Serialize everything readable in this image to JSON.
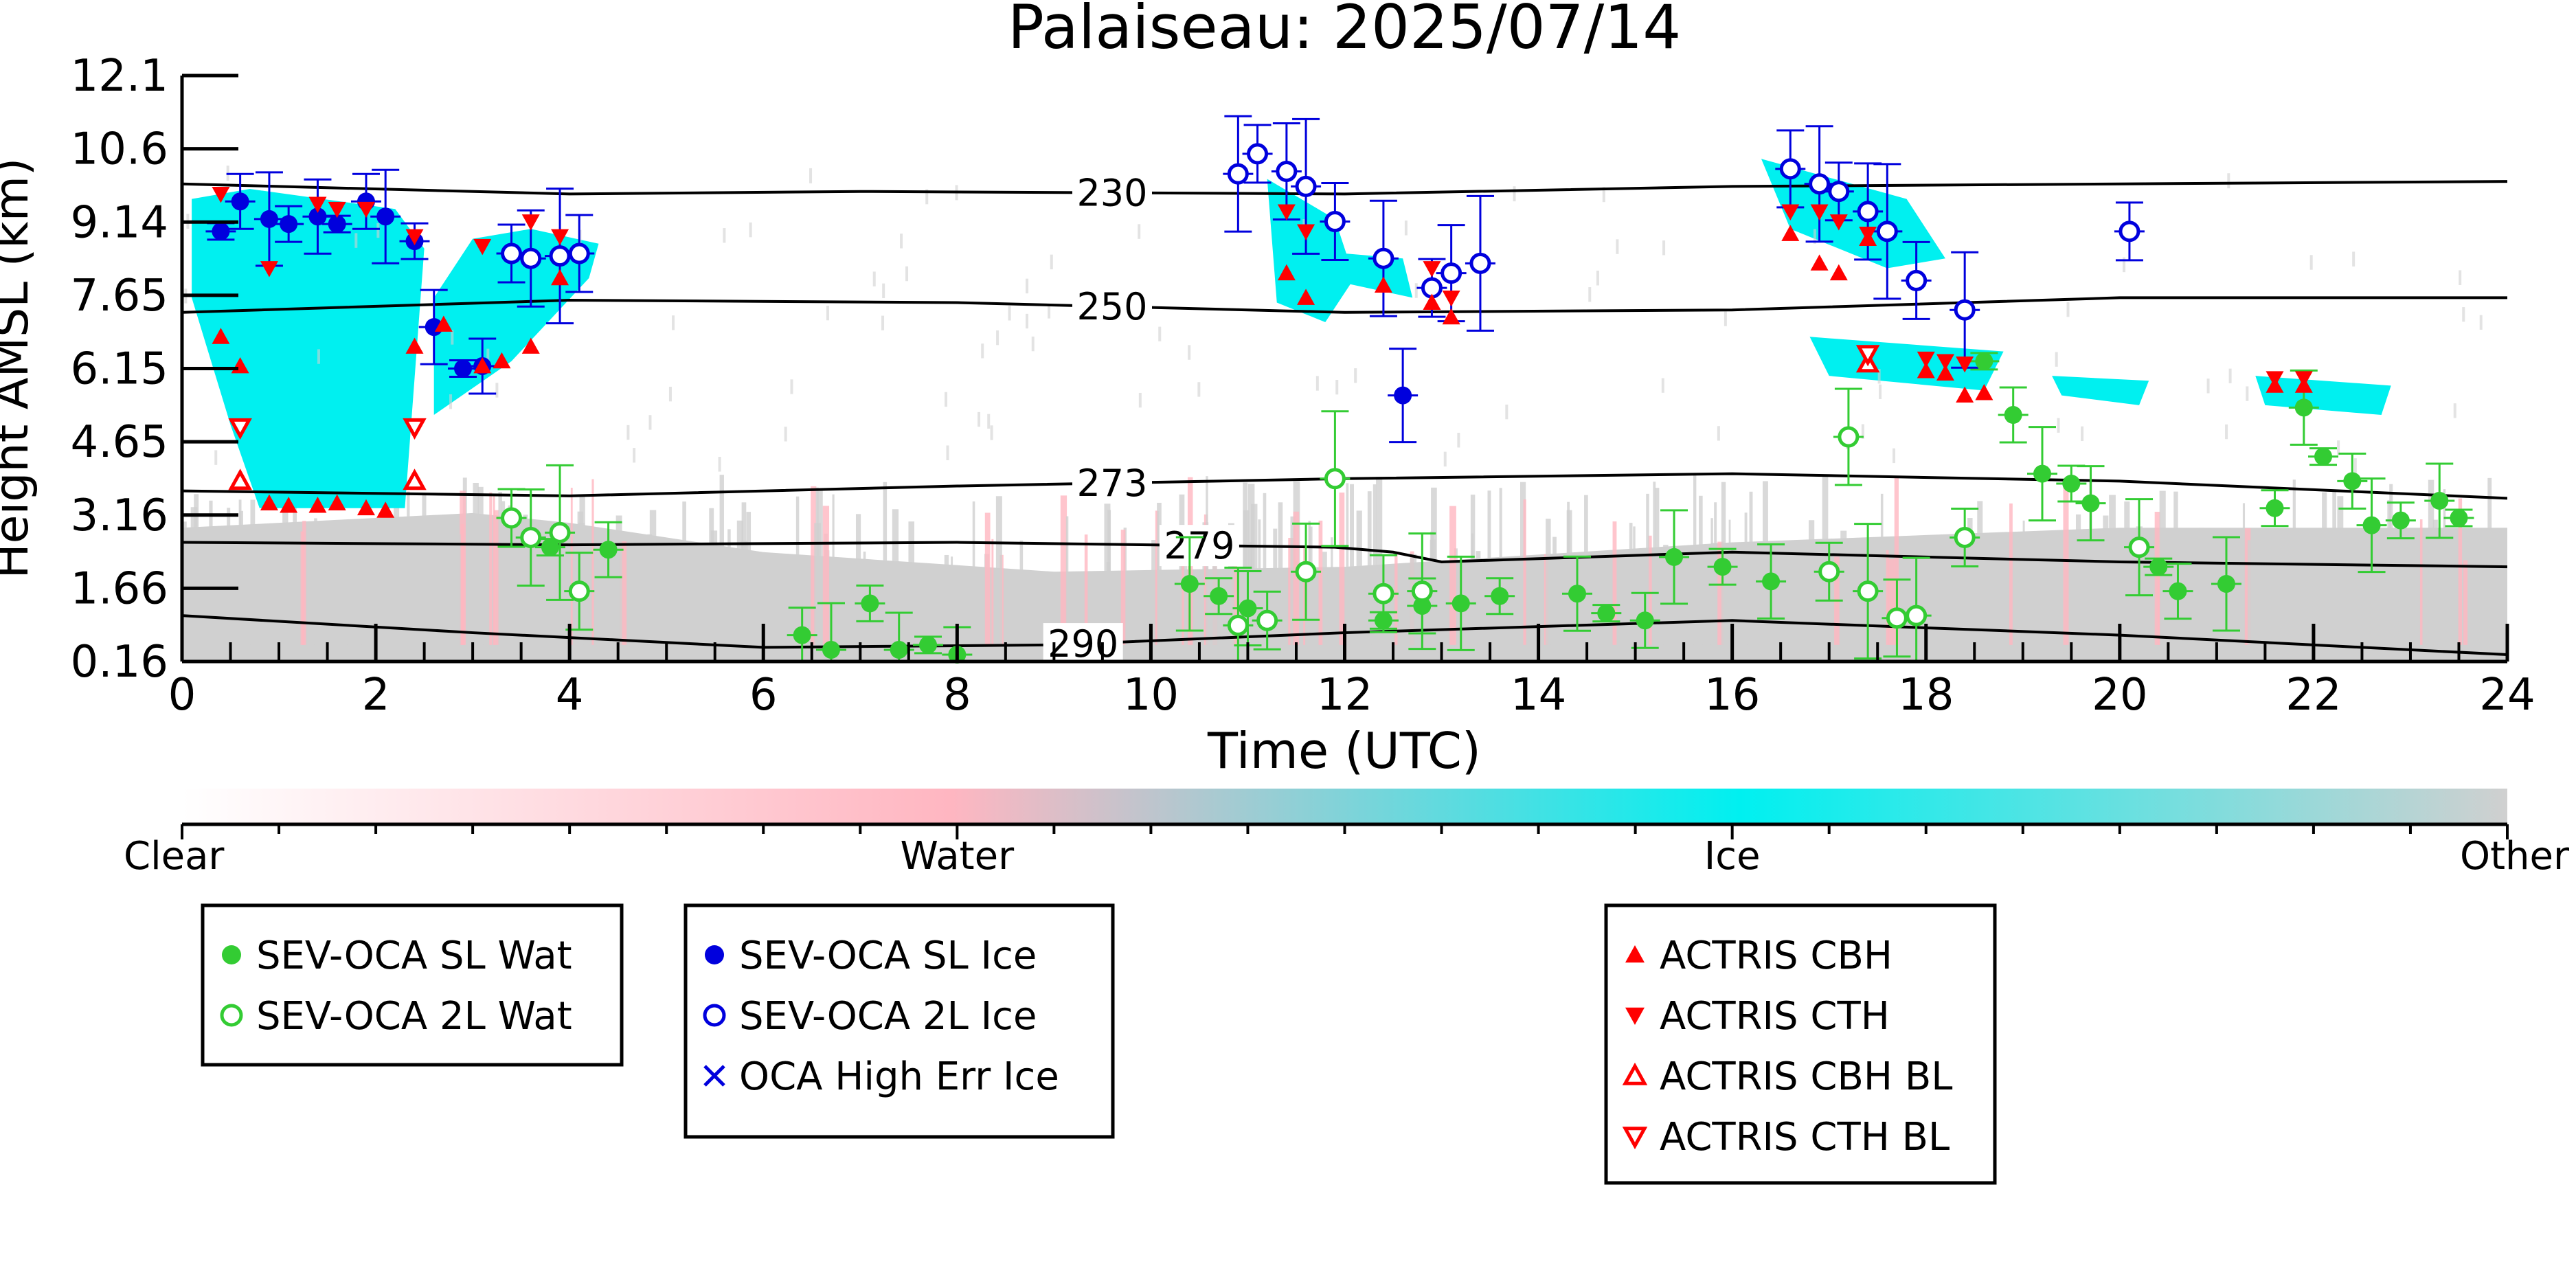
{
  "chart_data": {
    "type": "scatter",
    "title": "Palaiseau: 2025/07/14",
    "xlabel": "Time (UTC)",
    "ylabel": "Height AMSL (km)",
    "xlim": [
      0,
      24
    ],
    "ylim": [
      0.16,
      12.1
    ],
    "x_ticks": [
      "0",
      "2",
      "4",
      "6",
      "8",
      "10",
      "12",
      "14",
      "16",
      "18",
      "20",
      "22",
      "24"
    ],
    "y_ticks": [
      "0.16",
      "1.66",
      "3.16",
      "4.65",
      "6.15",
      "7.65",
      "9.14",
      "10.6",
      "12.1"
    ],
    "y_tick_values": [
      0.16,
      1.66,
      3.16,
      4.65,
      6.15,
      7.65,
      9.14,
      10.6,
      12.1
    ],
    "colorbar": {
      "labels": [
        "Clear",
        "Water",
        "Ice",
        "Other"
      ],
      "colors": {
        "clear": "#ffffff",
        "water": "#ffb6c1",
        "ice": "#00f0f0",
        "other": "#d0d0d0"
      }
    },
    "colors": {
      "water": "#33cc33",
      "ice": "#0000dd",
      "actris": "#ff0000"
    },
    "contours": [
      {
        "label": "230",
        "label_x": 9.6,
        "points": [
          [
            0,
            9.9
          ],
          [
            4,
            9.7
          ],
          [
            7,
            9.75
          ],
          [
            12,
            9.7
          ],
          [
            16,
            9.85
          ],
          [
            20,
            9.9
          ],
          [
            24,
            9.95
          ]
        ]
      },
      {
        "label": "250",
        "label_x": 9.6,
        "points": [
          [
            0,
            7.3
          ],
          [
            4,
            7.55
          ],
          [
            8,
            7.5
          ],
          [
            12,
            7.3
          ],
          [
            16,
            7.35
          ],
          [
            20,
            7.6
          ],
          [
            24,
            7.6
          ]
        ]
      },
      {
        "label": "273",
        "label_x": 9.6,
        "points": [
          [
            0,
            3.65
          ],
          [
            4,
            3.55
          ],
          [
            8,
            3.75
          ],
          [
            12,
            3.9
          ],
          [
            16,
            4.0
          ],
          [
            20,
            3.85
          ],
          [
            24,
            3.5
          ]
        ]
      },
      {
        "label": "279",
        "label_x": 10.5,
        "points": [
          [
            0,
            2.6
          ],
          [
            4,
            2.55
          ],
          [
            8,
            2.6
          ],
          [
            11.9,
            2.5
          ],
          [
            12.5,
            2.4
          ],
          [
            13,
            2.2
          ],
          [
            16,
            2.4
          ],
          [
            20,
            2.2
          ],
          [
            24,
            2.1
          ]
        ]
      },
      {
        "label": "290",
        "label_x": 9.3,
        "points": [
          [
            0,
            1.1
          ],
          [
            3,
            0.75
          ],
          [
            6,
            0.45
          ],
          [
            9,
            0.5
          ],
          [
            12,
            0.75
          ],
          [
            16,
            1.0
          ],
          [
            20,
            0.7
          ],
          [
            24,
            0.3
          ]
        ]
      }
    ],
    "series": [
      {
        "name": "SEV-OCA SL Wat",
        "marker": "filled-circle",
        "color": "#33cc33",
        "points": [
          [
            3.8,
            2.5
          ],
          [
            4.4,
            2.45
          ],
          [
            10.4,
            1.75
          ],
          [
            10.7,
            1.5
          ],
          [
            11.0,
            1.25
          ],
          [
            12.4,
            1.0
          ],
          [
            12.8,
            1.3
          ],
          [
            13.2,
            1.35
          ],
          [
            13.6,
            1.5
          ],
          [
            14.4,
            1.55
          ],
          [
            14.7,
            1.15
          ],
          [
            15.1,
            1.0
          ],
          [
            15.4,
            2.3
          ],
          [
            15.9,
            2.1
          ],
          [
            16.4,
            1.8
          ],
          [
            18.6,
            6.3
          ],
          [
            18.9,
            5.2
          ],
          [
            19.2,
            4.0
          ],
          [
            19.5,
            3.8
          ],
          [
            19.7,
            3.4
          ],
          [
            20.4,
            2.1
          ],
          [
            20.6,
            1.6
          ],
          [
            21.1,
            1.75
          ],
          [
            21.6,
            3.3
          ],
          [
            21.9,
            5.35
          ],
          [
            22.1,
            4.35
          ],
          [
            22.4,
            3.85
          ],
          [
            22.6,
            2.95
          ],
          [
            22.9,
            3.05
          ],
          [
            23.3,
            3.45
          ],
          [
            23.5,
            3.1
          ],
          [
            6.4,
            0.7
          ],
          [
            6.7,
            0.4
          ],
          [
            7.1,
            1.35
          ],
          [
            7.4,
            0.4
          ],
          [
            7.7,
            0.5
          ],
          [
            8.0,
            0.3
          ]
        ]
      },
      {
        "name": "SEV-OCA 2L Wat",
        "marker": "open-circle",
        "color": "#33cc33",
        "points": [
          [
            3.4,
            3.1
          ],
          [
            3.6,
            2.7
          ],
          [
            3.9,
            2.8
          ],
          [
            4.1,
            1.6
          ],
          [
            10.9,
            0.9
          ],
          [
            11.2,
            1.0
          ],
          [
            11.6,
            2.0
          ],
          [
            11.9,
            3.9
          ],
          [
            12.4,
            1.55
          ],
          [
            12.8,
            1.6
          ],
          [
            17.0,
            2.0
          ],
          [
            17.2,
            4.75
          ],
          [
            17.4,
            1.6
          ],
          [
            17.7,
            1.05
          ],
          [
            17.9,
            1.1
          ],
          [
            18.4,
            2.7
          ],
          [
            20.2,
            2.5
          ]
        ]
      },
      {
        "name": "SEV-OCA SL Ice",
        "marker": "filled-circle",
        "color": "#0000dd",
        "points": [
          [
            0.4,
            8.95
          ],
          [
            0.6,
            9.55
          ],
          [
            0.9,
            9.2
          ],
          [
            1.1,
            9.1
          ],
          [
            1.4,
            9.25
          ],
          [
            1.6,
            9.1
          ],
          [
            1.9,
            9.55
          ],
          [
            2.1,
            9.25
          ],
          [
            2.4,
            8.75
          ],
          [
            2.6,
            7.0
          ],
          [
            2.9,
            6.15
          ],
          [
            3.1,
            6.2
          ],
          [
            12.6,
            5.6
          ]
        ]
      },
      {
        "name": "SEV-OCA 2L Ice",
        "marker": "open-circle",
        "color": "#0000dd",
        "points": [
          [
            3.4,
            8.5
          ],
          [
            3.6,
            8.4
          ],
          [
            3.9,
            8.45
          ],
          [
            4.1,
            8.5
          ],
          [
            10.9,
            10.1
          ],
          [
            11.1,
            10.5
          ],
          [
            11.4,
            10.15
          ],
          [
            11.6,
            9.85
          ],
          [
            11.9,
            9.15
          ],
          [
            12.4,
            8.4
          ],
          [
            12.9,
            7.8
          ],
          [
            13.1,
            8.1
          ],
          [
            13.4,
            8.3
          ],
          [
            16.6,
            10.2
          ],
          [
            16.9,
            9.9
          ],
          [
            17.1,
            9.75
          ],
          [
            17.4,
            9.35
          ],
          [
            17.6,
            8.95
          ],
          [
            17.9,
            7.95
          ],
          [
            18.4,
            7.35
          ],
          [
            20.1,
            8.95
          ]
        ]
      },
      {
        "name": "OCA High Err Ice",
        "marker": "x",
        "color": "#0000dd",
        "points": []
      },
      {
        "name": "ACTRIS CBH",
        "marker": "filled-up-triangle",
        "color": "#ff0000",
        "points": [
          [
            0.4,
            6.8
          ],
          [
            0.6,
            6.2
          ],
          [
            0.9,
            3.4
          ],
          [
            1.1,
            3.35
          ],
          [
            1.4,
            3.35
          ],
          [
            1.6,
            3.4
          ],
          [
            1.9,
            3.3
          ],
          [
            2.1,
            3.25
          ],
          [
            2.4,
            6.6
          ],
          [
            2.7,
            7.05
          ],
          [
            3.1,
            6.2
          ],
          [
            3.3,
            6.3
          ],
          [
            3.6,
            6.6
          ],
          [
            3.9,
            8.0
          ],
          [
            11.4,
            8.1
          ],
          [
            11.6,
            7.6
          ],
          [
            12.4,
            7.85
          ],
          [
            12.9,
            7.5
          ],
          [
            13.1,
            7.2
          ],
          [
            16.6,
            8.9
          ],
          [
            16.9,
            8.3
          ],
          [
            17.1,
            8.1
          ],
          [
            17.4,
            8.8
          ],
          [
            18.0,
            6.1
          ],
          [
            18.2,
            6.05
          ],
          [
            18.4,
            5.6
          ],
          [
            18.6,
            5.65
          ],
          [
            21.6,
            5.8
          ],
          [
            21.9,
            5.8
          ]
        ]
      },
      {
        "name": "ACTRIS CTH",
        "marker": "filled-down-triangle",
        "color": "#ff0000",
        "points": [
          [
            0.4,
            9.7
          ],
          [
            0.9,
            8.2
          ],
          [
            1.4,
            9.5
          ],
          [
            1.6,
            9.4
          ],
          [
            1.9,
            9.4
          ],
          [
            2.4,
            8.85
          ],
          [
            3.1,
            8.65
          ],
          [
            3.6,
            9.15
          ],
          [
            3.9,
            8.85
          ],
          [
            11.4,
            9.35
          ],
          [
            11.6,
            8.95
          ],
          [
            12.9,
            8.2
          ],
          [
            13.1,
            7.6
          ],
          [
            16.6,
            9.35
          ],
          [
            16.9,
            9.35
          ],
          [
            17.1,
            9.15
          ],
          [
            17.4,
            8.9
          ],
          [
            18.0,
            6.35
          ],
          [
            18.2,
            6.3
          ],
          [
            18.4,
            6.25
          ],
          [
            21.6,
            5.95
          ],
          [
            21.9,
            5.95
          ]
        ]
      },
      {
        "name": "ACTRIS CBH BL",
        "marker": "open-up-triangle",
        "color": "#ff0000",
        "points": [
          [
            0.6,
            3.85
          ],
          [
            2.4,
            3.85
          ],
          [
            17.4,
            6.25
          ]
        ]
      },
      {
        "name": "ACTRIS CTH BL",
        "marker": "open-down-triangle",
        "color": "#ff0000",
        "points": [
          [
            0.6,
            4.95
          ],
          [
            2.4,
            4.95
          ],
          [
            17.4,
            6.45
          ]
        ]
      }
    ],
    "legend": [
      {
        "entries": [
          "SEV-OCA SL Wat",
          "SEV-OCA 2L Wat"
        ]
      },
      {
        "entries": [
          "SEV-OCA SL Ice",
          "SEV-OCA 2L Ice",
          "OCA High Err Ice"
        ]
      },
      {
        "entries": [
          "ACTRIS CBH",
          "ACTRIS CTH",
          "ACTRIS CBH BL",
          "ACTRIS CTH BL"
        ]
      }
    ]
  }
}
